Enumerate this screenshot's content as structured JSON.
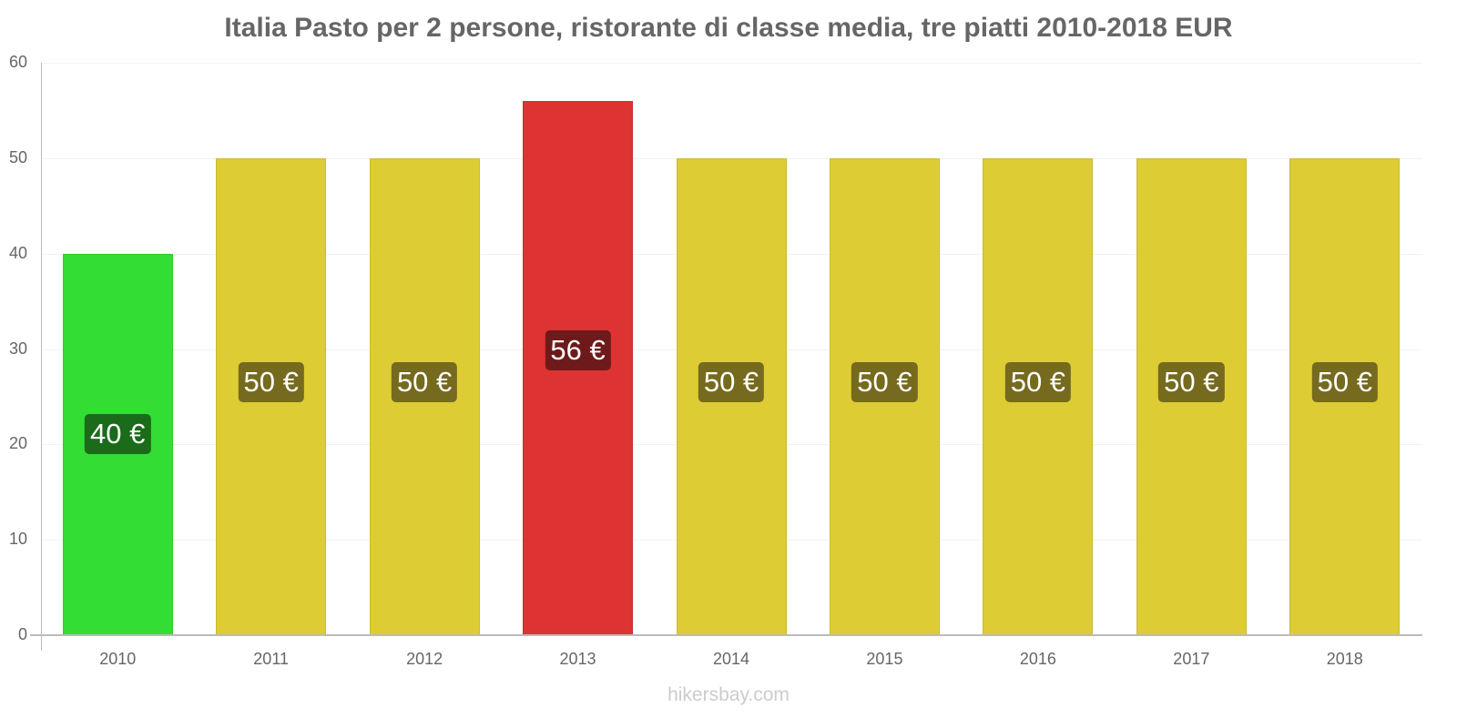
{
  "chart_data": {
    "type": "bar",
    "title": "Italia Pasto per 2 persone, ristorante di classe media, tre piatti 2010-2018 EUR",
    "xlabel": "",
    "ylabel": "",
    "ylim": [
      0,
      60
    ],
    "yticks": [
      0,
      10,
      20,
      30,
      40,
      50,
      60
    ],
    "grid": true,
    "legend": null,
    "categories": [
      "2010",
      "2011",
      "2012",
      "2013",
      "2014",
      "2015",
      "2016",
      "2017",
      "2018"
    ],
    "values": [
      40,
      50,
      50,
      56,
      50,
      50,
      50,
      50,
      50
    ],
    "data_labels": [
      "40 €",
      "50 €",
      "50 €",
      "56 €",
      "50 €",
      "50 €",
      "50 €",
      "50 €",
      "50 €"
    ],
    "bar_colors": [
      "#33dd33",
      "#ddcc33",
      "#ddcc33",
      "#dd3333",
      "#ddcc33",
      "#ddcc33",
      "#ddcc33",
      "#ddcc33",
      "#ddcc33"
    ],
    "label_bg_colors": [
      "#1a6b1a",
      "#756a1e",
      "#756a1e",
      "#6e1a1a",
      "#756a1e",
      "#756a1e",
      "#756a1e",
      "#756a1e",
      "#756a1e"
    ]
  },
  "footer": {
    "source": "hikersbay.com"
  }
}
